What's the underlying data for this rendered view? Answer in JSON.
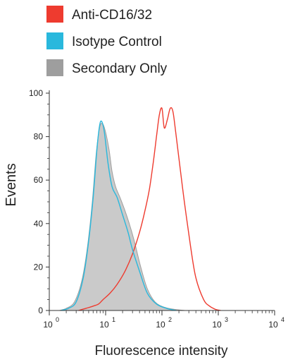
{
  "chart_data": {
    "type": "area",
    "xlabel": "Fluorescence intensity",
    "ylabel": "Events",
    "x_scale": "log",
    "xlim": [
      1,
      10000
    ],
    "ylim": [
      0,
      100
    ],
    "x_ticks": [
      {
        "value": 1,
        "base": "10",
        "exp": "0"
      },
      {
        "value": 10,
        "base": "10",
        "exp": "1"
      },
      {
        "value": 100,
        "base": "10",
        "exp": "2"
      },
      {
        "value": 1000,
        "base": "10",
        "exp": "3"
      },
      {
        "value": 10000,
        "base": "10",
        "exp": "4"
      }
    ],
    "y_ticks": [
      "0",
      "20",
      "40",
      "60",
      "80",
      "100"
    ],
    "grid": false,
    "legend_position": "top-left",
    "series": [
      {
        "name": "Anti-CD16/32",
        "color": "#ee3b2f",
        "style": "line",
        "x": [
          3.3,
          4.5,
          6.0,
          7.5,
          9.0,
          12,
          16,
          22,
          30,
          40,
          50,
          60,
          70,
          80,
          90,
          100,
          110,
          125,
          140,
          155,
          170,
          200,
          250,
          320,
          400,
          550,
          700,
          900,
          1100
        ],
        "y": [
          0,
          1,
          2,
          3,
          5,
          8,
          12,
          18,
          26,
          36,
          46,
          56,
          68,
          80,
          90,
          93,
          84,
          88,
          93,
          92,
          85,
          70,
          50,
          30,
          15,
          5,
          2,
          0.5,
          0
        ]
      },
      {
        "name": "Isotype Control",
        "color": "#29b8dd",
        "style": "line",
        "x": [
          1.6,
          2.2,
          3.0,
          4.0,
          5.0,
          6.0,
          7.0,
          7.8,
          8.5,
          9.5,
          11,
          13,
          16,
          20,
          25,
          30,
          40,
          55,
          80,
          120,
          180
        ],
        "y": [
          0,
          1,
          4,
          15,
          32,
          52,
          74,
          85,
          87,
          82,
          68,
          57,
          52,
          44,
          36,
          28,
          18,
          8,
          3,
          1,
          0
        ]
      },
      {
        "name": "Secondary Only",
        "color": "#9e9e9e",
        "style": "area",
        "x": [
          1.5,
          2.0,
          2.8,
          3.8,
          4.8,
          5.8,
          6.8,
          7.8,
          8.8,
          10,
          11.5,
          13,
          15,
          18,
          22,
          27,
          33,
          42,
          55,
          75,
          110,
          170,
          260
        ],
        "y": [
          0,
          1,
          4,
          14,
          30,
          50,
          72,
          84,
          86,
          82,
          74,
          64,
          57,
          52,
          46,
          39,
          31,
          20,
          10,
          4,
          1.5,
          0.5,
          0
        ]
      }
    ]
  }
}
